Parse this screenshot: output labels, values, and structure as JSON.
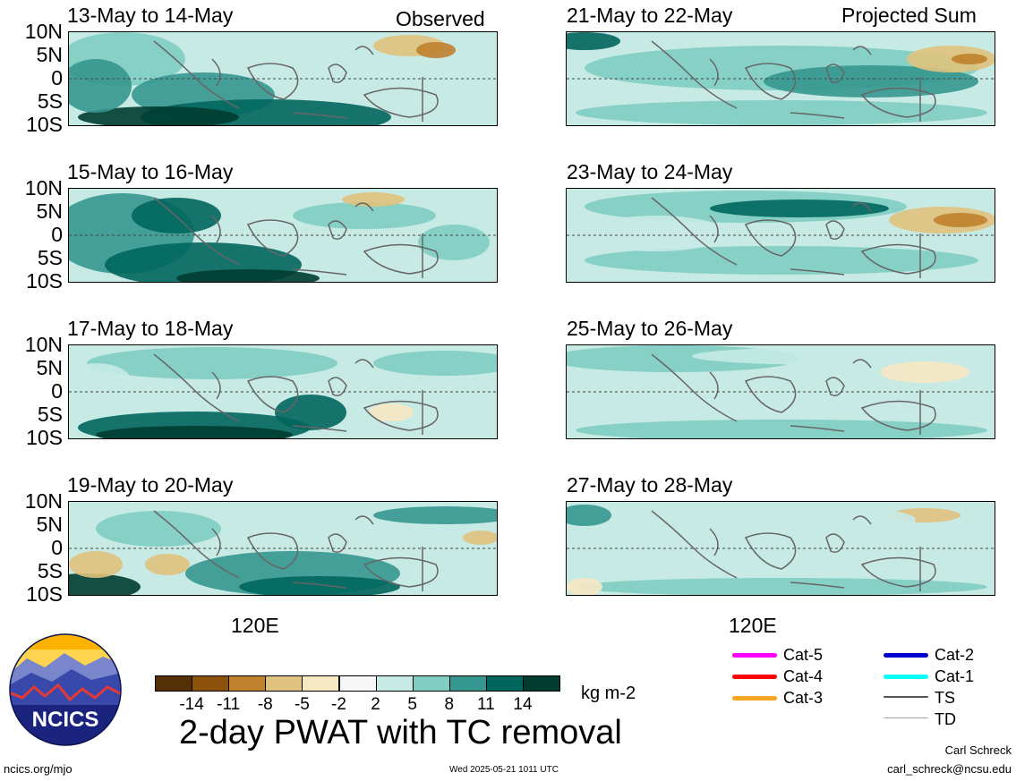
{
  "observed_label": "Observed",
  "projected_label": "Projected Sum",
  "lat_ticks": [
    "10N",
    "5N",
    "0",
    "5S",
    "10S"
  ],
  "lon_label": "120E",
  "panels_left": [
    {
      "title": "13-May to 14-May"
    },
    {
      "title": "15-May to 16-May"
    },
    {
      "title": "17-May to 18-May"
    },
    {
      "title": "19-May to 20-May"
    }
  ],
  "panels_right": [
    {
      "title": "21-May to 22-May"
    },
    {
      "title": "23-May to 24-May"
    },
    {
      "title": "25-May to 26-May"
    },
    {
      "title": "27-May to 28-May"
    }
  ],
  "colorbar": {
    "colors": [
      "#543005",
      "#8c510a",
      "#bf812d",
      "#dfc27d",
      "#f6e8c3",
      "#f7f7f7",
      "#c7eae5",
      "#80cdc1",
      "#35978f",
      "#01665e",
      "#003c30"
    ],
    "ticks": [
      "-14",
      "-11",
      "-8",
      "-5",
      "-2",
      "2",
      "5",
      "8",
      "11",
      "14"
    ],
    "units": "kg m-2"
  },
  "main_title": "2-day PWAT with TC removal",
  "legend": [
    {
      "label": "Cat-5",
      "color": "#ff00ff"
    },
    {
      "label": "Cat-4",
      "color": "#ff0000"
    },
    {
      "label": "Cat-3",
      "color": "#f5a623"
    },
    {
      "label": "Cat-2",
      "color": "#0000cc"
    },
    {
      "label": "Cat-1",
      "color": "#00ffff"
    },
    {
      "label": "TS",
      "color": "#555555"
    },
    {
      "label": "TD",
      "color": "#aaaaaa"
    }
  ],
  "logo_text": "NCICS",
  "footer": {
    "left": "ncics.org/mjo",
    "center": "Wed 2025-05-21 1011 UTC",
    "author": "Carl Schreck",
    "email": "carl_schreck@ncsu.edu"
  }
}
